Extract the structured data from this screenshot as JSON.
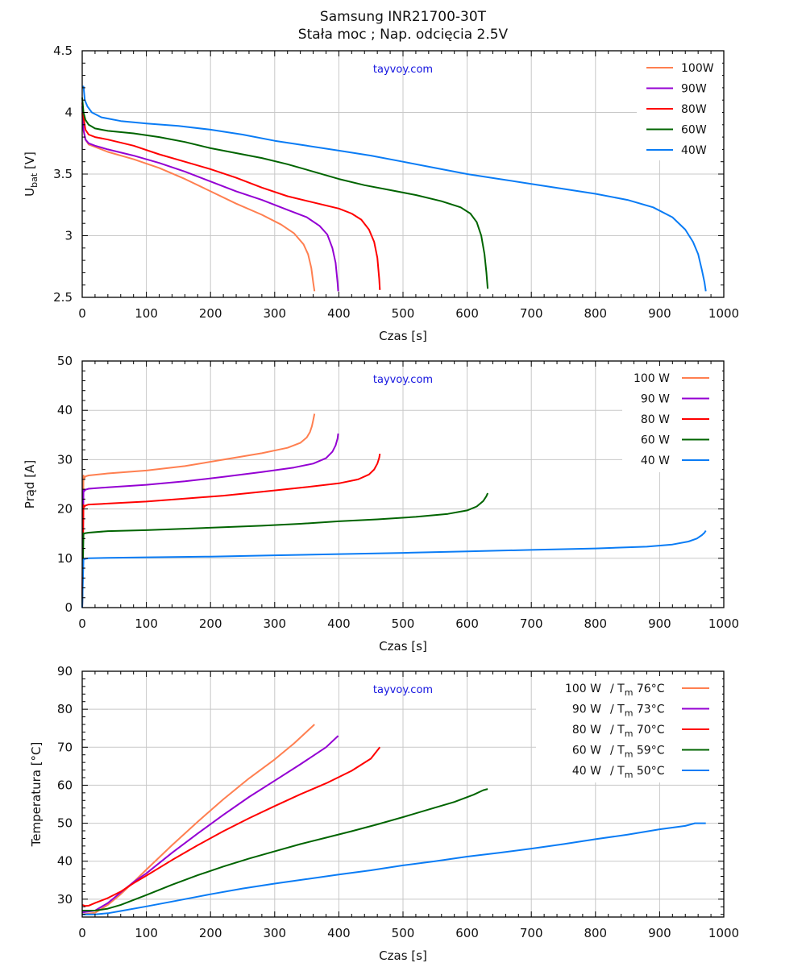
{
  "chart_data": [
    {
      "type": "line",
      "id": "voltage",
      "title": "Samsung INR21700-30T",
      "subtitle": "Stała moc  ;  Nap. odcięcia 2.5V",
      "watermark": "tayvoy.com",
      "xlabel": "Czas [s]",
      "ylabel": "U",
      "ylabel_sub": "bat",
      "ylabel_suffix": " [V]",
      "xlim": [
        0,
        1000
      ],
      "ylim": [
        2.5,
        4.5
      ],
      "xticks": [
        0,
        100,
        200,
        300,
        400,
        500,
        600,
        700,
        800,
        900,
        1000
      ],
      "yticks": [
        2.5,
        3,
        3.5,
        4,
        4.5
      ],
      "ytick_labels": [
        "2.5",
        "3",
        "3.5",
        "4",
        "4.5"
      ],
      "grid": true,
      "legend_position": "top-right",
      "legend_style": "line-first",
      "series": [
        {
          "name": "100W",
          "color": "#ff7f50",
          "x": [
            0,
            2,
            5,
            10,
            20,
            40,
            80,
            120,
            160,
            200,
            240,
            280,
            310,
            330,
            345,
            352,
            357,
            360,
            362
          ],
          "y": [
            4.0,
            3.85,
            3.78,
            3.74,
            3.72,
            3.68,
            3.62,
            3.55,
            3.46,
            3.36,
            3.26,
            3.17,
            3.09,
            3.02,
            2.93,
            2.85,
            2.74,
            2.62,
            2.55
          ]
        },
        {
          "name": "90W",
          "color": "#9400d3",
          "x": [
            0,
            2,
            5,
            10,
            20,
            40,
            80,
            120,
            160,
            200,
            240,
            280,
            320,
            350,
            370,
            382,
            390,
            395,
            398,
            399
          ],
          "y": [
            4.05,
            3.86,
            3.78,
            3.75,
            3.73,
            3.7,
            3.65,
            3.59,
            3.52,
            3.44,
            3.36,
            3.29,
            3.21,
            3.15,
            3.08,
            3.01,
            2.9,
            2.78,
            2.62,
            2.55
          ]
        },
        {
          "name": "80W",
          "color": "#ff0000",
          "x": [
            0,
            2,
            5,
            10,
            20,
            40,
            80,
            120,
            160,
            200,
            240,
            280,
            320,
            360,
            400,
            420,
            435,
            447,
            455,
            460,
            463,
            464
          ],
          "y": [
            4.08,
            3.96,
            3.86,
            3.82,
            3.8,
            3.78,
            3.73,
            3.66,
            3.6,
            3.54,
            3.47,
            3.39,
            3.32,
            3.27,
            3.22,
            3.18,
            3.13,
            3.05,
            2.95,
            2.82,
            2.65,
            2.56
          ]
        },
        {
          "name": "60W",
          "color": "#006400",
          "x": [
            0,
            2,
            5,
            10,
            20,
            40,
            80,
            120,
            160,
            200,
            240,
            280,
            320,
            360,
            400,
            440,
            480,
            520,
            560,
            590,
            605,
            615,
            622,
            627,
            630,
            632
          ],
          "y": [
            4.12,
            4.0,
            3.94,
            3.9,
            3.87,
            3.85,
            3.83,
            3.8,
            3.76,
            3.71,
            3.67,
            3.63,
            3.58,
            3.52,
            3.46,
            3.41,
            3.37,
            3.33,
            3.28,
            3.23,
            3.18,
            3.11,
            3.0,
            2.85,
            2.7,
            2.57
          ]
        },
        {
          "name": "40W",
          "color": "#0a7cf5",
          "x": [
            0,
            2,
            4,
            8,
            15,
            30,
            60,
            100,
            150,
            200,
            250,
            300,
            350,
            400,
            450,
            500,
            550,
            600,
            650,
            700,
            750,
            800,
            850,
            890,
            920,
            940,
            952,
            960,
            966,
            970,
            972
          ],
          "y": [
            4.21,
            4.21,
            4.1,
            4.05,
            4.0,
            3.96,
            3.93,
            3.91,
            3.89,
            3.86,
            3.82,
            3.77,
            3.73,
            3.69,
            3.65,
            3.6,
            3.55,
            3.5,
            3.46,
            3.42,
            3.38,
            3.34,
            3.29,
            3.23,
            3.15,
            3.05,
            2.95,
            2.85,
            2.72,
            2.62,
            2.55
          ]
        }
      ]
    },
    {
      "type": "line",
      "id": "current",
      "watermark": "tayvoy.com",
      "xlabel": "Czas [s]",
      "ylabel": "Prąd [A]",
      "xlim": [
        0,
        1000
      ],
      "ylim": [
        0,
        50
      ],
      "xticks": [
        0,
        100,
        200,
        300,
        400,
        500,
        600,
        700,
        800,
        900,
        1000
      ],
      "yticks": [
        0,
        10,
        20,
        30,
        40,
        50
      ],
      "ytick_labels": [
        "0",
        "10",
        "20",
        "30",
        "40",
        "50"
      ],
      "grid": true,
      "legend_position": "top-right",
      "legend_style": "text-first",
      "series": [
        {
          "name": "100 W",
          "color": "#ff7f50",
          "x": [
            0,
            1,
            2,
            3,
            5,
            10,
            40,
            100,
            160,
            220,
            280,
            320,
            340,
            350,
            355,
            358,
            360,
            362
          ],
          "y": [
            0,
            15,
            26.8,
            26.2,
            26.6,
            26.8,
            27.2,
            27.8,
            28.7,
            30.0,
            31.3,
            32.4,
            33.4,
            34.5,
            35.6,
            36.8,
            38.0,
            39.3
          ]
        },
        {
          "name": "90 W",
          "color": "#9400d3",
          "x": [
            0,
            1,
            2,
            3,
            5,
            10,
            40,
            100,
            160,
            220,
            280,
            330,
            360,
            380,
            390,
            395,
            398,
            399
          ],
          "y": [
            0,
            12,
            23.8,
            23.6,
            23.9,
            24.1,
            24.4,
            24.9,
            25.6,
            26.5,
            27.5,
            28.4,
            29.2,
            30.3,
            31.6,
            32.9,
            34.3,
            35.3
          ]
        },
        {
          "name": "80 W",
          "color": "#ff0000",
          "x": [
            0,
            1,
            2,
            3,
            5,
            10,
            40,
            100,
            160,
            220,
            280,
            340,
            400,
            430,
            447,
            455,
            460,
            463,
            464
          ],
          "y": [
            0,
            10,
            20.8,
            20.4,
            20.7,
            20.9,
            21.1,
            21.5,
            22.1,
            22.7,
            23.5,
            24.3,
            25.2,
            26.0,
            27.0,
            28.0,
            29.2,
            30.4,
            31.2
          ]
        },
        {
          "name": "60 W",
          "color": "#006400",
          "x": [
            0,
            1,
            2,
            3,
            5,
            10,
            40,
            100,
            160,
            220,
            280,
            340,
            400,
            460,
            520,
            570,
            600,
            615,
            625,
            630,
            632
          ],
          "y": [
            0,
            8,
            15.1,
            15.0,
            15.1,
            15.2,
            15.5,
            15.7,
            16.0,
            16.3,
            16.6,
            17.0,
            17.5,
            17.9,
            18.4,
            19.0,
            19.7,
            20.5,
            21.6,
            22.6,
            23.2
          ]
        },
        {
          "name": "40 W",
          "color": "#0a7cf5",
          "x": [
            0,
            1,
            2,
            3,
            5,
            10,
            40,
            100,
            200,
            300,
            400,
            500,
            600,
            700,
            800,
            880,
            920,
            945,
            958,
            966,
            970,
            972
          ],
          "y": [
            0,
            5,
            9.8,
            9.8,
            9.9,
            10.0,
            10.1,
            10.2,
            10.35,
            10.6,
            10.85,
            11.1,
            11.4,
            11.7,
            12.0,
            12.35,
            12.8,
            13.4,
            14.0,
            14.7,
            15.2,
            15.6
          ]
        }
      ]
    },
    {
      "type": "line",
      "id": "temperature",
      "watermark": "tayvoy.com",
      "xlabel": "Czas [s]",
      "ylabel": "Temperatura [°C]",
      "xlim": [
        0,
        1000
      ],
      "ylim": [
        25.3,
        90
      ],
      "xticks": [
        0,
        100,
        200,
        300,
        400,
        500,
        600,
        700,
        800,
        900,
        1000
      ],
      "yticks": [
        30,
        40,
        50,
        60,
        70,
        80,
        90
      ],
      "ytick_labels": [
        "30",
        "40",
        "50",
        "60",
        "70",
        "80",
        "90"
      ],
      "grid": true,
      "legend_position": "top-right",
      "legend_style": "text-first",
      "series": [
        {
          "name": "100 W",
          "tm_label": "76°C",
          "color": "#ff7f50",
          "x": [
            0,
            20,
            40,
            60,
            80,
            100,
            140,
            180,
            220,
            260,
            300,
            330,
            362
          ],
          "y": [
            26,
            26.4,
            28.5,
            31.3,
            34.5,
            37.8,
            44.2,
            50.4,
            56.3,
            61.8,
            66.8,
            71,
            76
          ]
        },
        {
          "name": "90 W",
          "tm_label": "73°C",
          "color": "#9400d3",
          "x": [
            0,
            20,
            40,
            60,
            80,
            100,
            140,
            180,
            220,
            260,
            300,
            340,
            380,
            399
          ],
          "y": [
            26.5,
            27,
            29,
            31.8,
            34.5,
            36.8,
            42.2,
            47.3,
            52.2,
            56.9,
            61.2,
            65.5,
            70,
            73
          ]
        },
        {
          "name": "80 W",
          "tm_label": "70°C",
          "color": "#ff0000",
          "x": [
            0,
            5,
            10,
            20,
            40,
            60,
            80,
            100,
            140,
            180,
            220,
            260,
            300,
            340,
            380,
            420,
            450,
            464
          ],
          "y": [
            28.5,
            28.2,
            28.3,
            29,
            30.3,
            32,
            34.2,
            36.2,
            40.3,
            44.2,
            47.9,
            51.3,
            54.5,
            57.6,
            60.5,
            63.8,
            67,
            70
          ]
        },
        {
          "name": "60 W",
          "tm_label": "59°C",
          "color": "#006400",
          "x": [
            0,
            20,
            40,
            60,
            80,
            100,
            140,
            180,
            220,
            260,
            300,
            340,
            380,
            420,
            460,
            500,
            540,
            580,
            610,
            625,
            632
          ],
          "y": [
            27,
            27,
            27.5,
            28.5,
            29.8,
            31.1,
            33.8,
            36.3,
            38.6,
            40.7,
            42.6,
            44.5,
            46.2,
            47.9,
            49.7,
            51.6,
            53.6,
            55.6,
            57.5,
            58.7,
            59
          ]
        },
        {
          "name": "40 W",
          "tm_label": "50°C",
          "color": "#0a7cf5",
          "x": [
            0,
            20,
            40,
            60,
            100,
            150,
            200,
            250,
            300,
            350,
            400,
            450,
            500,
            550,
            600,
            650,
            700,
            750,
            800,
            850,
            900,
            940,
            955,
            972
          ],
          "y": [
            26,
            26,
            26.3,
            26.9,
            28.1,
            29.7,
            31.3,
            32.8,
            34.1,
            35.3,
            36.5,
            37.6,
            38.9,
            40,
            41.2,
            42.2,
            43.3,
            44.5,
            45.8,
            47,
            48.4,
            49.3,
            50,
            50
          ]
        }
      ]
    }
  ],
  "labels": {
    "title": "Samsung INR21700-30T",
    "subtitle": "Stała moc  ;  Nap. odcięcia 2.5V",
    "tm_prefix": "/ T",
    "tm_sub": "m"
  }
}
